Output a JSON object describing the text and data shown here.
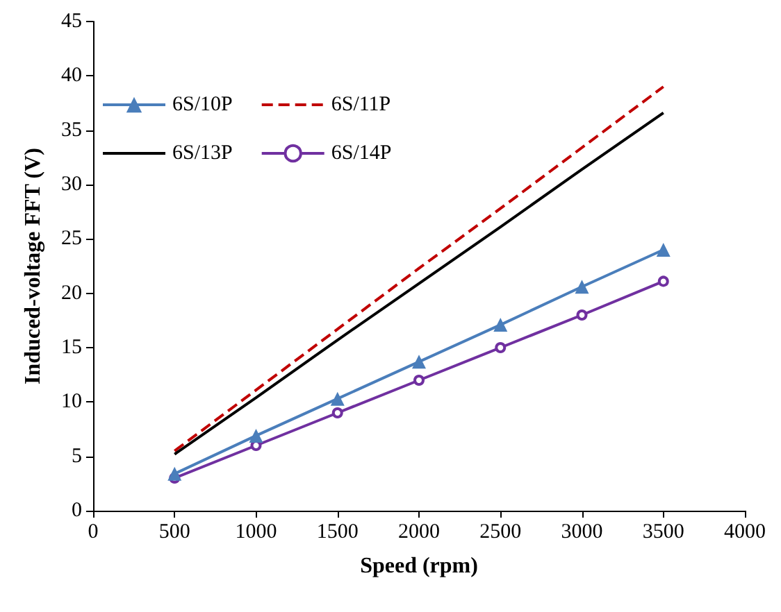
{
  "chart_data": {
    "type": "line",
    "xlabel": "Speed (rpm)",
    "ylabel": "Induced-voltage FFT (V)",
    "x": [
      500,
      1000,
      1500,
      2000,
      2500,
      3000,
      3500
    ],
    "series": [
      {
        "name": "6S/10P",
        "color": "#4a7ebb",
        "marker": "triangle",
        "line_style": "solid",
        "values": [
          3.4,
          6.9,
          10.3,
          13.7,
          17.1,
          20.6,
          24.0
        ]
      },
      {
        "name": "6S/11P",
        "color": "#c00000",
        "marker": "none",
        "line_style": "dashed",
        "values": [
          5.5,
          11.1,
          16.7,
          22.3,
          27.8,
          33.4,
          39.0
        ]
      },
      {
        "name": "6S/13P",
        "color": "#000000",
        "marker": "none",
        "line_style": "solid",
        "values": [
          5.2,
          10.4,
          15.7,
          20.9,
          26.1,
          31.4,
          36.6
        ]
      },
      {
        "name": "6S/14P",
        "color": "#7030a0",
        "marker": "circle",
        "line_style": "solid",
        "values": [
          3.0,
          6.0,
          9.0,
          12.0,
          15.0,
          18.0,
          21.1
        ]
      }
    ],
    "xlim": [
      0,
      4000
    ],
    "xticks": [
      0,
      500,
      1000,
      1500,
      2000,
      2500,
      3000,
      3500,
      4000
    ],
    "ylim": [
      0,
      45
    ],
    "yticks": [
      0,
      5,
      10,
      15,
      20,
      25,
      30,
      35,
      40,
      45
    ],
    "grid": false,
    "legend": "top left"
  }
}
